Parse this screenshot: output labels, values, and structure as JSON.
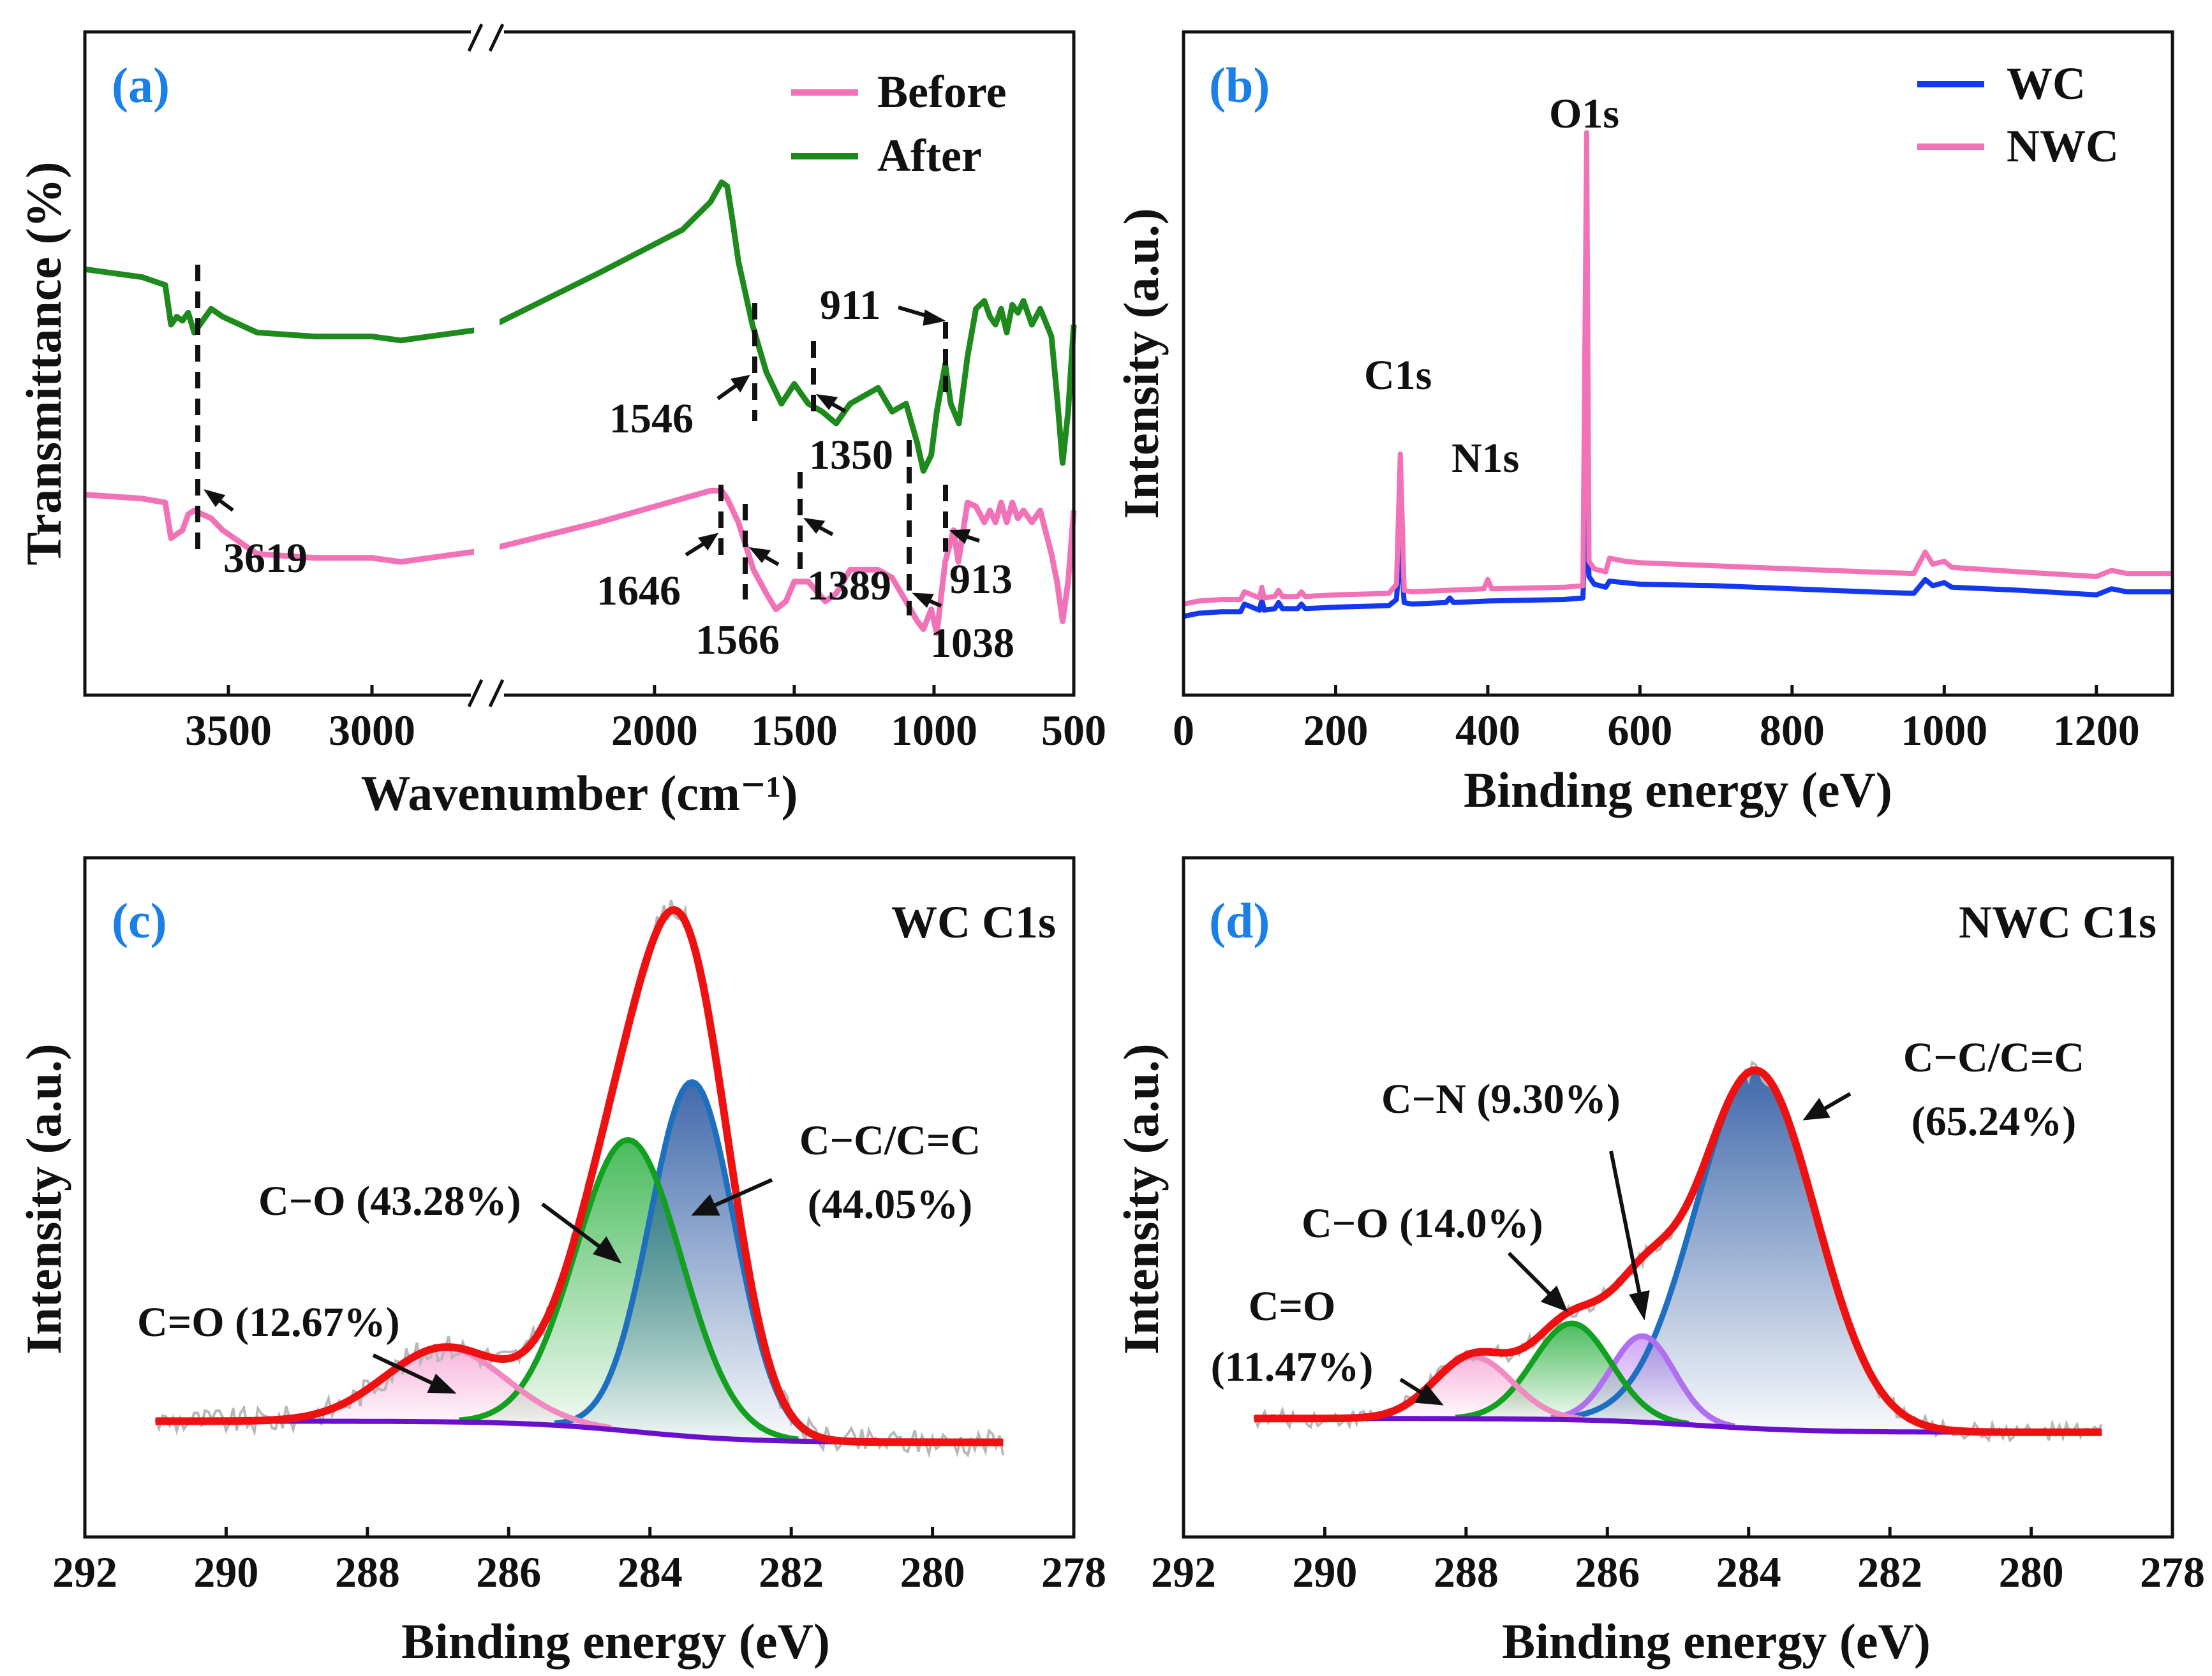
{
  "chart_data": [
    {
      "panel": "(a)",
      "type": "line",
      "xlabel": "Wavenumber (cm⁻¹)",
      "ylabel": "Transmittance (%)",
      "x_reversed": true,
      "x_broken": true,
      "x_segments": [
        [
          4000,
          2600
        ],
        [
          2600,
          500
        ]
      ],
      "xticks": [
        "3500",
        "3000",
        "2000",
        "1500",
        "1000",
        "500"
      ],
      "legend": [
        "Before",
        "After"
      ],
      "colors": {
        "Before": "#f272b8",
        "After": "#1e8a1e"
      },
      "series": [
        {
          "name": "After",
          "x": [
            4000,
            3800,
            3720,
            3700,
            3680,
            3660,
            3640,
            3619,
            3560,
            3520,
            3400,
            3200,
            3000,
            2900,
            2800,
            2600,
            2200,
            1900,
            1800,
            1760,
            1740,
            1720,
            1700,
            1650,
            1600,
            1546,
            1500,
            1450,
            1400,
            1350,
            1300,
            1200,
            1150,
            1100,
            1060,
            1038,
            1010,
            990,
            960,
            940,
            911,
            880,
            850,
            820,
            800,
            780,
            760,
            740,
            720,
            700,
            680,
            650,
            620,
            580,
            560,
            540,
            520,
            500
          ],
          "y": [
            94,
            92,
            90,
            80,
            82,
            81,
            83,
            78,
            84,
            82,
            78,
            77,
            77,
            76,
            77,
            79,
            93,
            104,
            111,
            116,
            115,
            106,
            96,
            80,
            68,
            60,
            65,
            60,
            58,
            55,
            60,
            64,
            58,
            60,
            50,
            43,
            47,
            58,
            70,
            60,
            55,
            72,
            84,
            86,
            82,
            80,
            84,
            78,
            85,
            83,
            86,
            80,
            84,
            77,
            62,
            45,
            58,
            80
          ]
        },
        {
          "name": "Before",
          "x": [
            4000,
            3800,
            3720,
            3700,
            3680,
            3660,
            3640,
            3619,
            3560,
            3520,
            3400,
            3200,
            3000,
            2900,
            2800,
            2600,
            2200,
            1900,
            1800,
            1760,
            1740,
            1700,
            1646,
            1600,
            1566,
            1530,
            1500,
            1450,
            1389,
            1350,
            1300,
            1200,
            1150,
            1100,
            1060,
            1038,
            1010,
            990,
            960,
            930,
            913,
            880,
            850,
            820,
            800,
            780,
            760,
            740,
            720,
            700,
            680,
            650,
            620,
            580,
            560,
            540,
            520,
            500
          ],
          "y": [
            37,
            36,
            35,
            26,
            27,
            28,
            32,
            33,
            31,
            28,
            22,
            21,
            21,
            20,
            21,
            23,
            30,
            36,
            38,
            38,
            36,
            30,
            18,
            12,
            8,
            10,
            15,
            15,
            10,
            12,
            18,
            18,
            16,
            10,
            5,
            3,
            8,
            2,
            20,
            28,
            20,
            35,
            34,
            30,
            33,
            30,
            35,
            30,
            35,
            31,
            33,
            30,
            33,
            22,
            15,
            5,
            15,
            33
          ]
        }
      ],
      "annotations": [
        "3619",
        "1646",
        "1566",
        "1389",
        "1038",
        "913",
        "1546",
        "1350",
        "911"
      ]
    },
    {
      "panel": "(b)",
      "type": "line",
      "xlabel": "Binding energy (eV)",
      "ylabel": "Intensity (a.u.)",
      "xlim": [
        0,
        1300
      ],
      "xticks": [
        0,
        200,
        400,
        600,
        800,
        1000,
        1200
      ],
      "legend": [
        "WC",
        "NWC"
      ],
      "colors": {
        "WC": "#1438f0",
        "NWC": "#f272b8"
      },
      "series": [
        {
          "name": "WC",
          "x": [
            0,
            20,
            50,
            75,
            80,
            100,
            103,
            106,
            120,
            125,
            130,
            150,
            155,
            160,
            200,
            270,
            280,
            285,
            290,
            300,
            345,
            350,
            355,
            400,
            500,
            525,
            530,
            533,
            540,
            555,
            560,
            580,
            600,
            700,
            800,
            900,
            960,
            975,
            985,
            1000,
            1010,
            1100,
            1200,
            1220,
            1230,
            1240,
            1300
          ],
          "y": [
            14,
            16,
            17,
            17,
            22,
            18,
            25,
            18,
            19,
            23,
            19,
            19,
            22,
            19,
            20,
            21,
            25,
            63,
            23,
            22,
            23,
            26,
            23,
            24,
            25,
            26,
            100,
            40,
            35,
            33,
            37,
            36,
            35,
            34,
            32,
            30,
            29,
            38,
            34,
            36,
            33,
            31,
            28,
            32,
            31,
            30,
            30
          ]
        },
        {
          "name": "NWC",
          "x": [
            0,
            20,
            50,
            75,
            80,
            100,
            103,
            106,
            120,
            125,
            130,
            150,
            155,
            160,
            200,
            270,
            280,
            285,
            290,
            300,
            395,
            400,
            405,
            500,
            525,
            530,
            533,
            540,
            555,
            560,
            580,
            600,
            700,
            800,
            900,
            960,
            975,
            985,
            1000,
            1010,
            1100,
            1200,
            1220,
            1230,
            1240,
            1300
          ],
          "y": [
            22,
            24,
            25,
            25,
            30,
            26,
            33,
            26,
            27,
            31,
            27,
            27,
            30,
            27,
            28,
            29,
            35,
            120,
            31,
            30,
            32,
            38,
            32,
            33,
            34,
            330,
            50,
            45,
            43,
            52,
            50,
            49,
            47,
            45,
            43,
            42,
            56,
            48,
            50,
            46,
            43,
            40,
            44,
            43,
            42,
            42
          ]
        }
      ],
      "peak_labels": [
        "C1s",
        "N1s",
        "O1s"
      ]
    },
    {
      "panel": "(c)",
      "title": "WC C1s",
      "type": "line",
      "xlabel": "Binding energy (eV)",
      "ylabel": "Intensity (a.u.)",
      "xlim": [
        292,
        278
      ],
      "xticks": [
        292,
        290,
        288,
        286,
        284,
        282,
        280,
        278
      ],
      "x_range": [
        291,
        279
      ],
      "background": {
        "start": 2,
        "end": -2,
        "center": 284.2,
        "width": 0.8
      },
      "components": [
        {
          "label": "C−C/C=C (44.05%)",
          "center": 283.4,
          "height": 67,
          "sigma": 0.6,
          "color": "#1f6fc0",
          "fill": "#1f4f9c"
        },
        {
          "label": "C−O (43.28%)",
          "center": 284.3,
          "height": 55,
          "sigma": 0.75,
          "color": "#11a020",
          "fill": "#2ab040"
        },
        {
          "label": "C=O (12.67%)",
          "center": 286.9,
          "height": 14,
          "sigma": 0.85,
          "color": "#f08ac0",
          "fill": "#f7a8d6"
        }
      ],
      "envelope_color": "#ee1111",
      "background_color": "#6a10cc",
      "annotations": [
        "C−C/C=C",
        "(44.05%)",
        "C−O (43.28%)",
        "C=O (12.67%)"
      ]
    },
    {
      "panel": "(d)",
      "title": "NWC C1s",
      "type": "line",
      "xlabel": "Binding energy (eV)",
      "ylabel": "Intensity (a.u.)",
      "xlim": [
        292,
        278
      ],
      "xticks": [
        292,
        290,
        288,
        286,
        284,
        282,
        280,
        278
      ],
      "x_range": [
        291,
        279
      ],
      "background": {
        "start": 2,
        "end": -2,
        "center": 284.7,
        "width": 0.8
      },
      "components": [
        {
          "label": "C−C/C=C (65.24%)",
          "center": 283.9,
          "height": 104,
          "sigma": 0.85,
          "color": "#1f6fc0",
          "fill": "#1f4f9c"
        },
        {
          "label": "C−N (9.30%)",
          "center": 285.5,
          "height": 25,
          "sigma": 0.45,
          "color": "#b06ef0",
          "fill": "#c996f5"
        },
        {
          "label": "C−O (14.0%)",
          "center": 286.5,
          "height": 28,
          "sigma": 0.55,
          "color": "#11a020",
          "fill": "#2ab040"
        },
        {
          "label": "C=O (11.47%)",
          "center": 287.9,
          "height": 18,
          "sigma": 0.55,
          "color": "#f08ac0",
          "fill": "#f7a8d6"
        }
      ],
      "envelope_color": "#ee1111",
      "background_color": "#6a10cc",
      "annotations": [
        "C−C/C=C",
        "(65.24%)",
        "C−N (9.30%)",
        "C−O (14.0%)",
        "C=O",
        "(11.47%)"
      ]
    }
  ]
}
